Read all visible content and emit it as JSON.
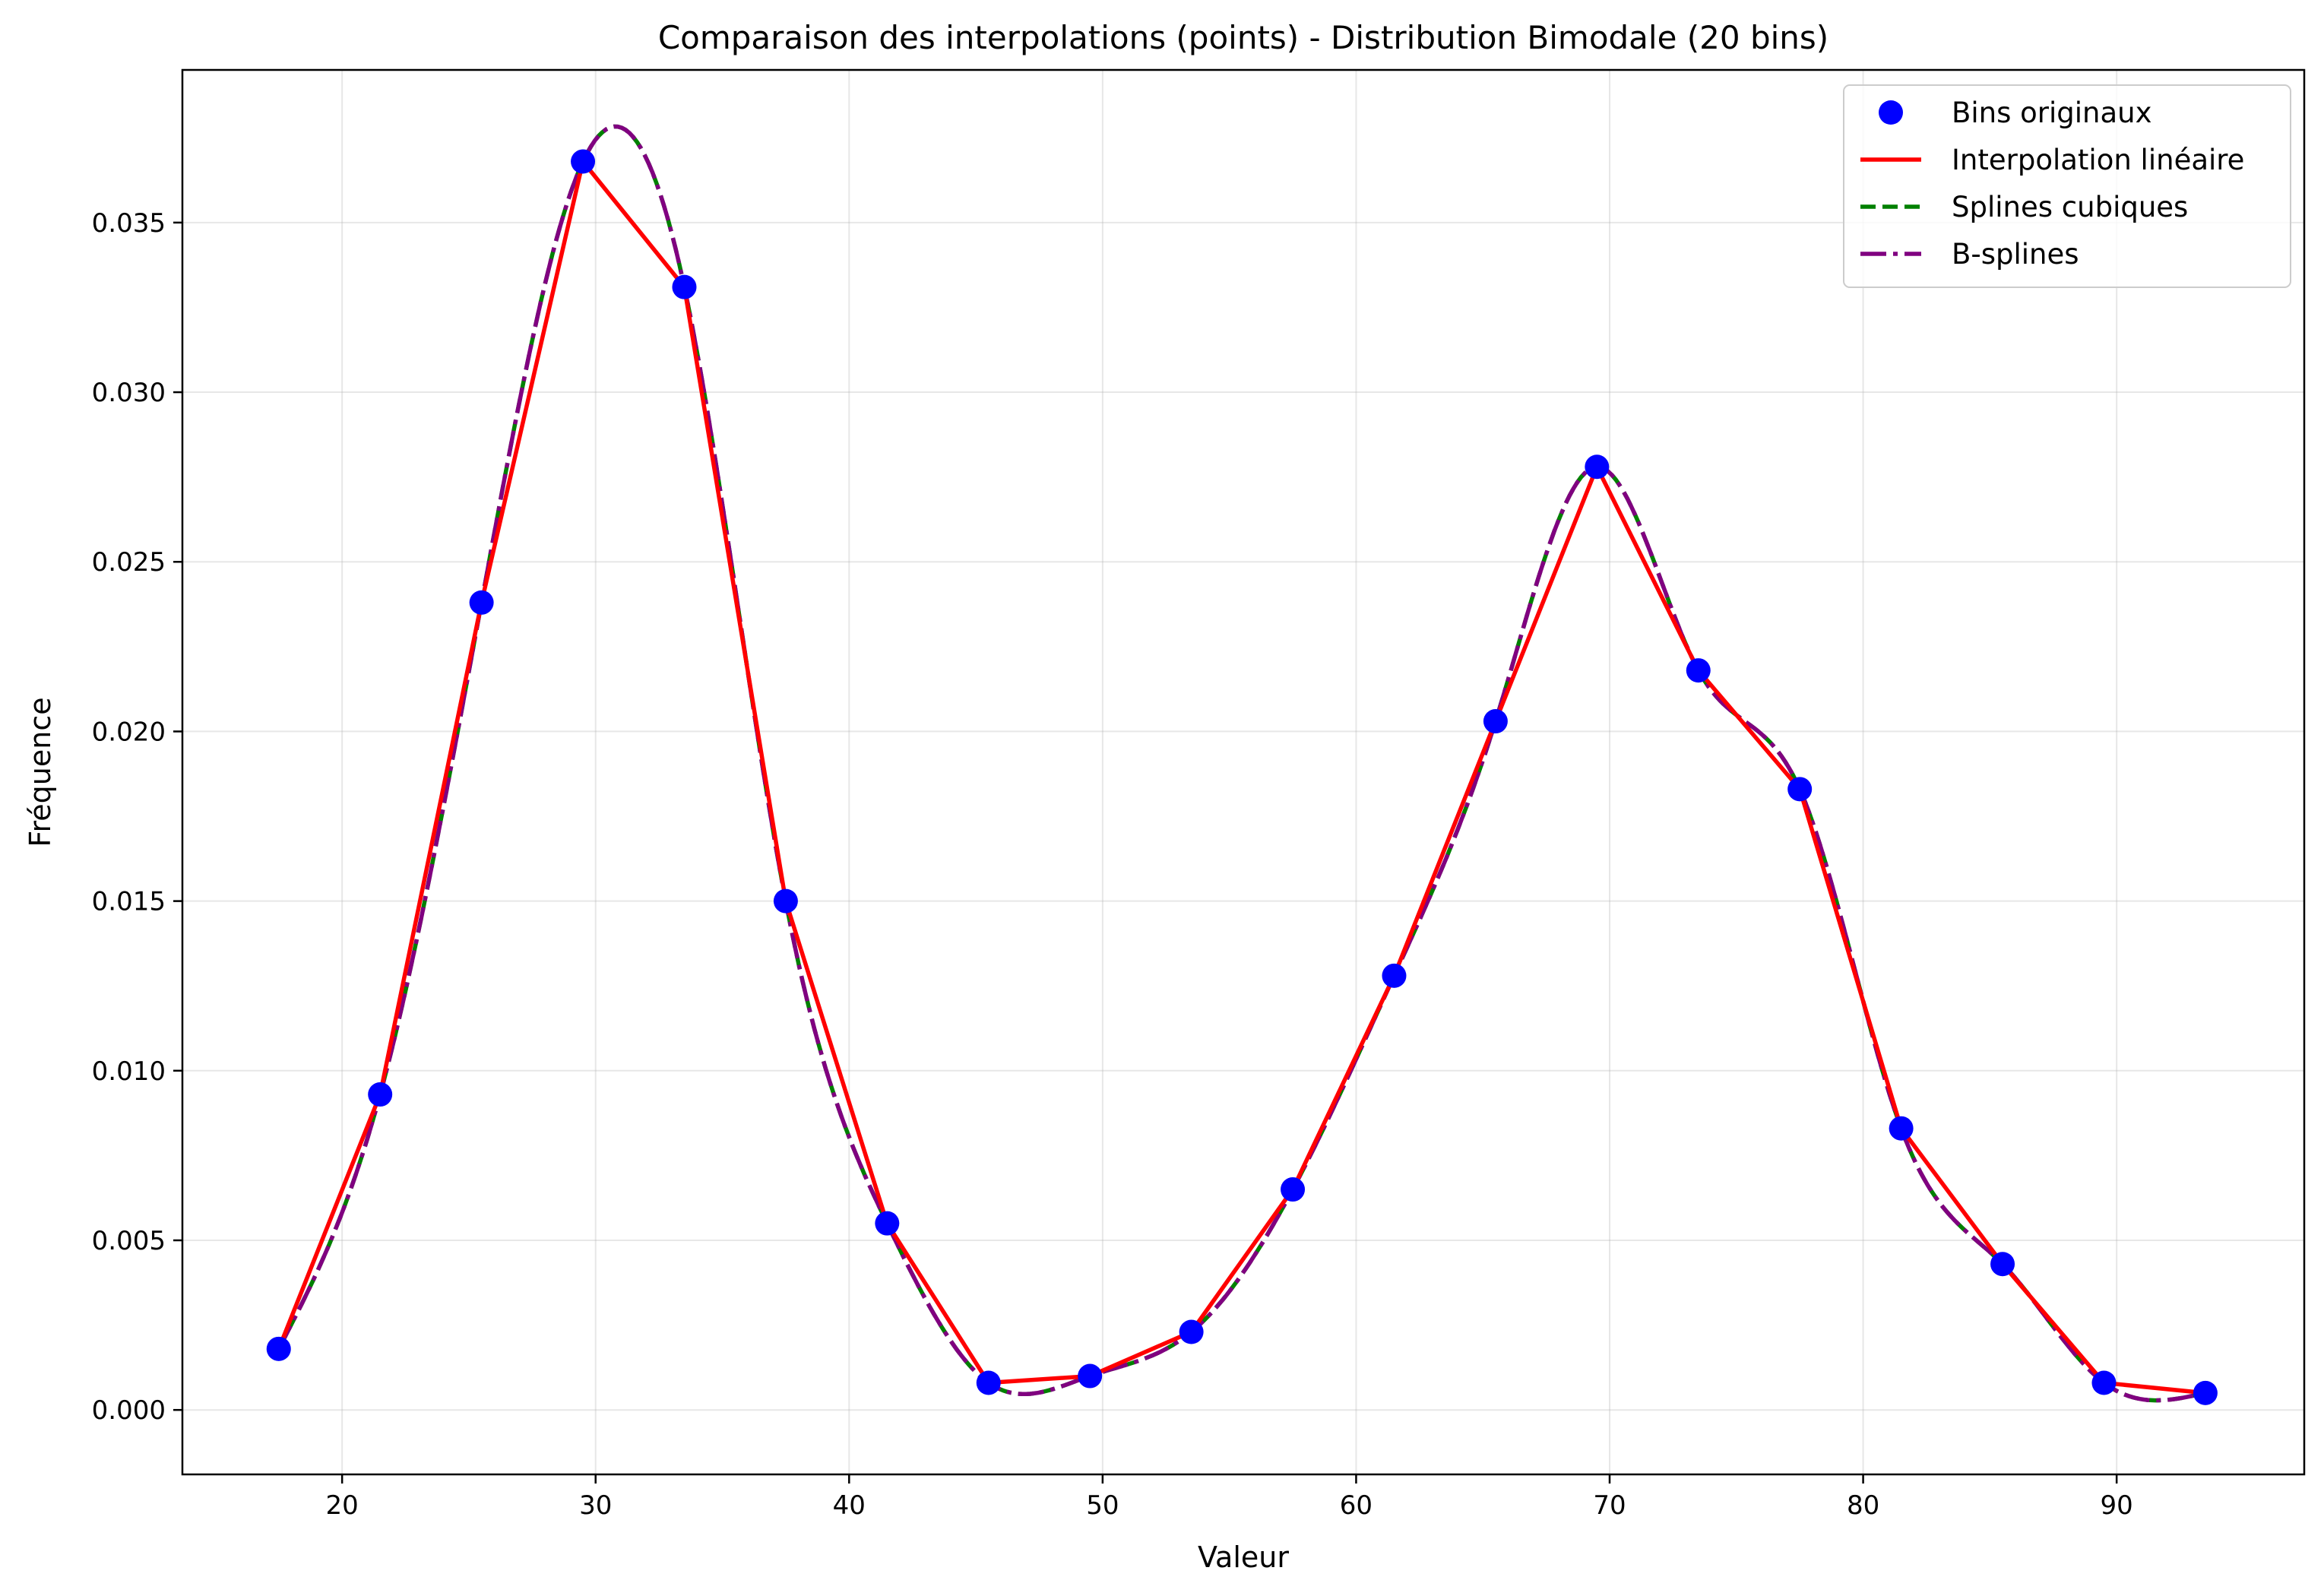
{
  "chart_data": {
    "type": "line",
    "title": "Comparaison des interpolations (points) - Distribution Bimodale (20 bins)",
    "xlabel": "Valeur",
    "ylabel": "Fréquence",
    "xlim": [
      13.7,
      97.4
    ],
    "ylim": [
      -0.0019,
      0.0395
    ],
    "xticks": [
      20,
      30,
      40,
      50,
      60,
      70,
      80,
      90
    ],
    "xtick_labels": [
      "20",
      "30",
      "40",
      "50",
      "60",
      "70",
      "80",
      "90"
    ],
    "yticks": [
      0.0,
      0.005,
      0.01,
      0.015,
      0.02,
      0.025,
      0.03,
      0.035
    ],
    "ytick_labels": [
      "0.000",
      "0.005",
      "0.010",
      "0.015",
      "0.020",
      "0.025",
      "0.030",
      "0.035"
    ],
    "grid": true,
    "legend_position": "top-right",
    "x": [
      17.5,
      21.5,
      25.5,
      29.5,
      33.5,
      37.5,
      41.5,
      45.5,
      49.5,
      53.5,
      57.5,
      61.5,
      65.5,
      69.5,
      73.5,
      77.5,
      81.5,
      85.5,
      89.5,
      93.5
    ],
    "series": [
      {
        "name": "Bins originaux",
        "style": "markers",
        "color": "#0000ff",
        "values": [
          0.0018,
          0.0093,
          0.0238,
          0.0368,
          0.0331,
          0.015,
          0.0055,
          0.0008,
          0.001,
          0.0023,
          0.0065,
          0.0128,
          0.0203,
          0.0278,
          0.0218,
          0.0183,
          0.0083,
          0.0043,
          0.0008,
          0.0005
        ]
      },
      {
        "name": "Interpolation linéaire",
        "style": "solid",
        "color": "#ff0000",
        "values": [
          0.0018,
          0.0093,
          0.0238,
          0.0368,
          0.0331,
          0.015,
          0.0055,
          0.0008,
          0.001,
          0.0023,
          0.0065,
          0.0128,
          0.0203,
          0.0278,
          0.0218,
          0.0183,
          0.0083,
          0.0043,
          0.0008,
          0.0005
        ]
      },
      {
        "name": "Splines cubiques",
        "style": "dashed",
        "color": "#008000",
        "values": [
          0.0018,
          0.0093,
          0.0238,
          0.0368,
          0.0331,
          0.015,
          0.0055,
          0.0008,
          0.001,
          0.0023,
          0.0065,
          0.0128,
          0.0203,
          0.0278,
          0.0218,
          0.0183,
          0.0083,
          0.0043,
          0.0008,
          0.0005
        ]
      },
      {
        "name": "B-splines",
        "style": "dashdot",
        "color": "#800080",
        "values": [
          0.0018,
          0.0093,
          0.0238,
          0.0368,
          0.0331,
          0.015,
          0.0055,
          0.0008,
          0.001,
          0.0023,
          0.0065,
          0.0128,
          0.0203,
          0.0278,
          0.0218,
          0.0183,
          0.0083,
          0.0043,
          0.0008,
          0.0005
        ]
      }
    ]
  }
}
